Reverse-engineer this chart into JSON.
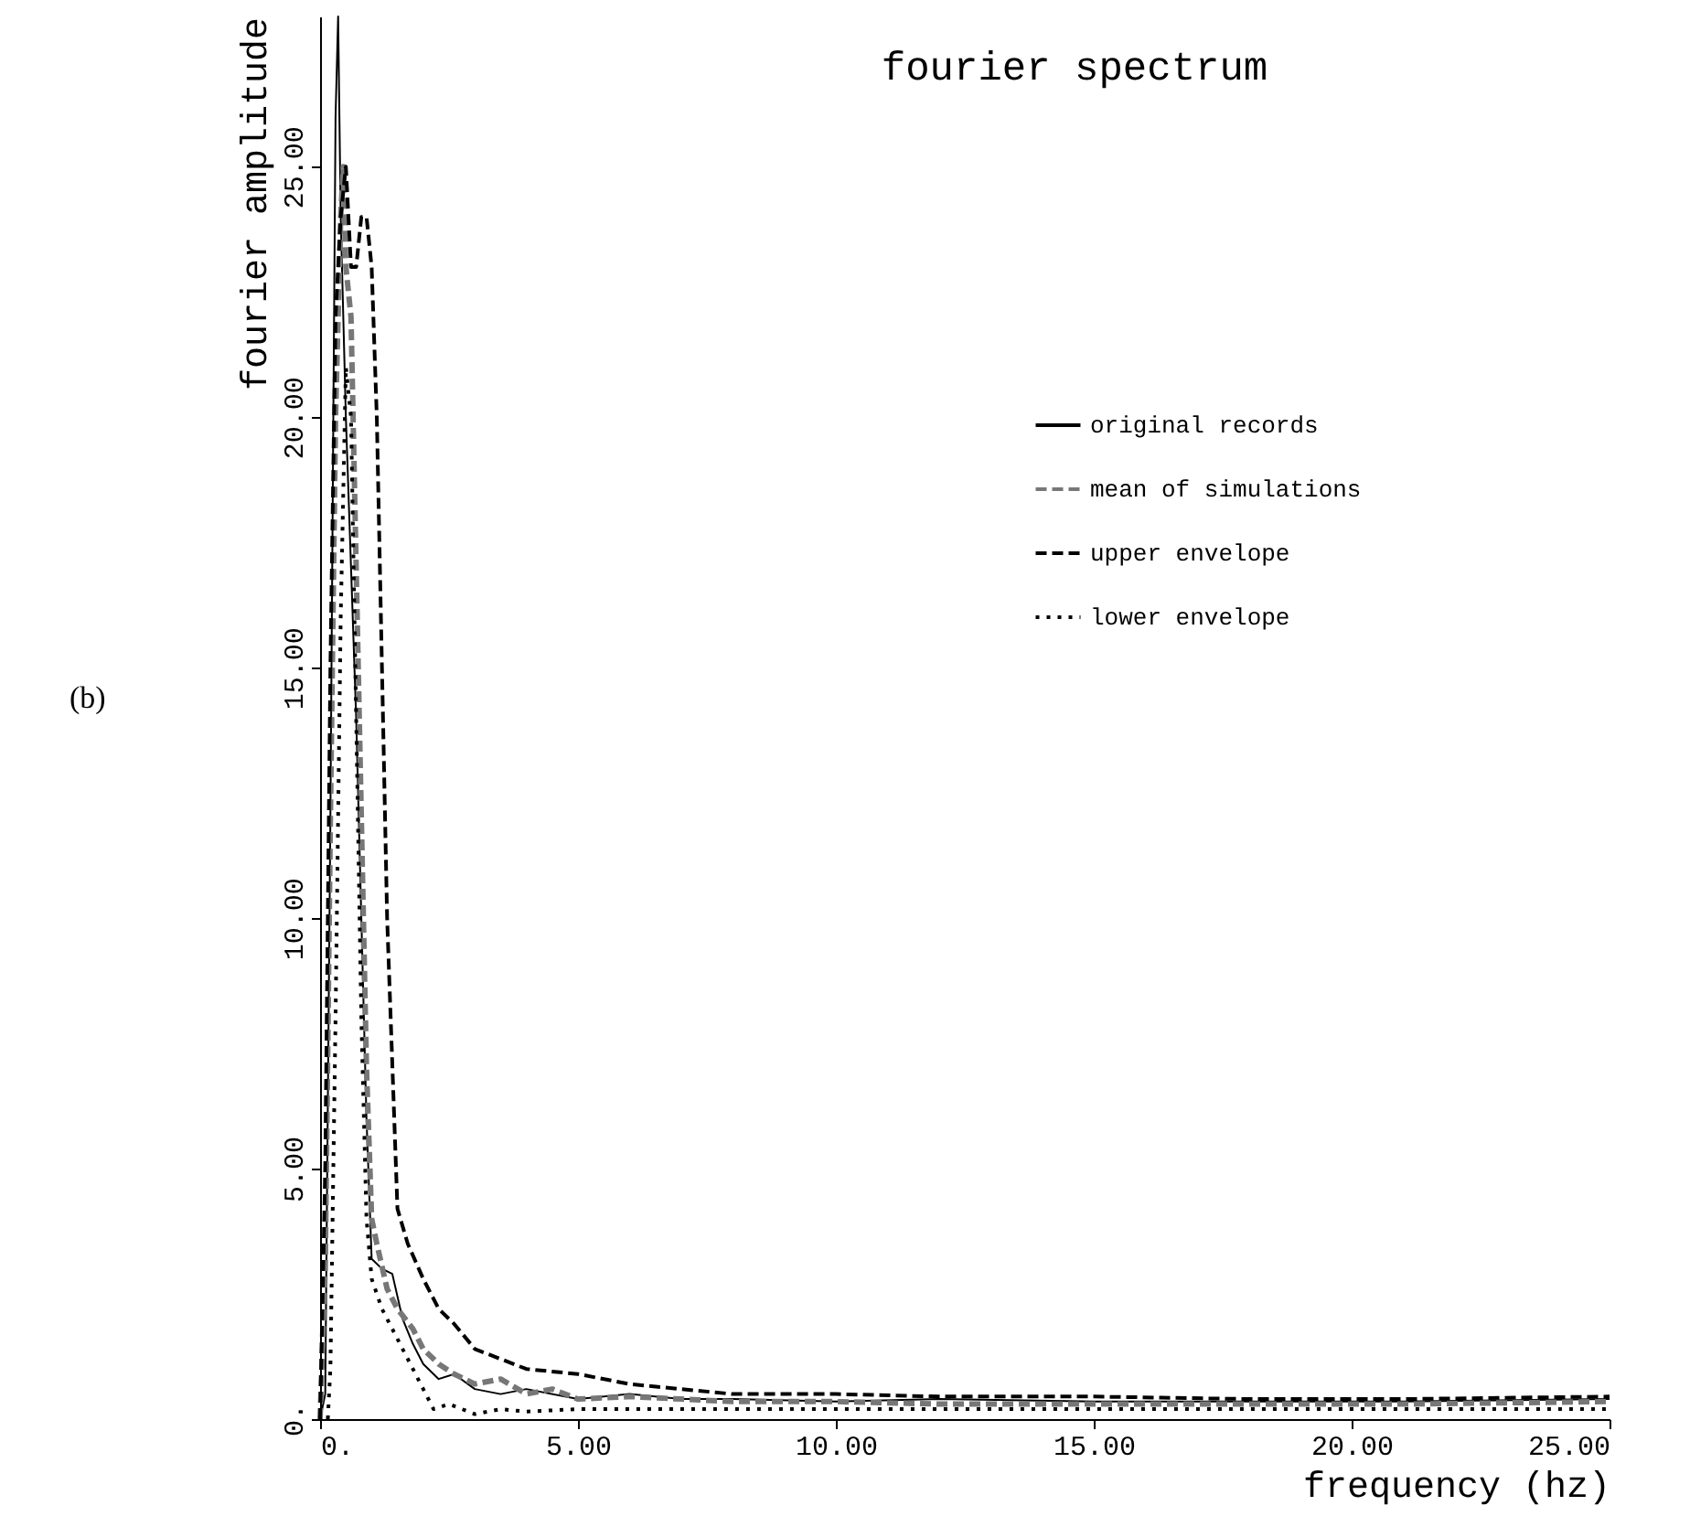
{
  "chart_data": {
    "type": "line",
    "title": "fourier spectrum",
    "xlabel": "frequency  (hz)",
    "ylabel": "fourier amplitude",
    "annotations": [
      "(b)"
    ],
    "xlim": [
      0,
      25
    ],
    "ylim": [
      0,
      28
    ],
    "xticks": [
      {
        "value": 0,
        "label": "0."
      },
      {
        "value": 5,
        "label": "5.00"
      },
      {
        "value": 10,
        "label": "10.00"
      },
      {
        "value": 15,
        "label": "15.00"
      },
      {
        "value": 20,
        "label": "20.00"
      },
      {
        "value": 25,
        "label": "25.00"
      }
    ],
    "yticks": [
      {
        "value": 0,
        "label": "0."
      },
      {
        "value": 5,
        "label": "5.00"
      },
      {
        "value": 10,
        "label": "10.00"
      },
      {
        "value": 15,
        "label": "15.00"
      },
      {
        "value": 20,
        "label": "20.00"
      },
      {
        "value": 25,
        "label": "25.00"
      }
    ],
    "grid": false,
    "legend": "top right",
    "series": [
      {
        "name": "original records",
        "color": "#000000",
        "line_style": "solid",
        "x": [
          0,
          0.1,
          0.2,
          0.3,
          0.35,
          0.4,
          0.5,
          0.6,
          0.7,
          0.8,
          0.9,
          1.0,
          1.2,
          1.4,
          1.6,
          1.8,
          2.0,
          2.3,
          2.6,
          3.0,
          3.5,
          4,
          5,
          6,
          7,
          8,
          10,
          12,
          15,
          18,
          21,
          25
        ],
        "values": [
          0,
          0.5,
          12,
          26,
          28,
          24,
          20,
          17,
          14,
          10,
          6,
          3.2,
          3.0,
          2.9,
          2.0,
          1.5,
          1.1,
          0.8,
          0.9,
          0.6,
          0.5,
          0.6,
          0.4,
          0.5,
          0.4,
          0.4,
          0.35,
          0.4,
          0.35,
          0.35,
          0.35,
          0.4
        ]
      },
      {
        "name": "mean of simulations",
        "color": "#777777",
        "line_style": "dashed",
        "x": [
          0,
          0.1,
          0.2,
          0.3,
          0.4,
          0.45,
          0.5,
          0.6,
          0.7,
          0.8,
          0.9,
          1.0,
          1.1,
          1.3,
          1.5,
          1.8,
          2.0,
          2.3,
          2.6,
          3.0,
          3.5,
          4,
          4.5,
          5,
          6,
          7,
          8,
          10,
          12,
          15,
          18,
          21,
          25
        ],
        "values": [
          0,
          3,
          12,
          20,
          24,
          25,
          23,
          22,
          17,
          12,
          7,
          4,
          3.5,
          2.6,
          2.2,
          1.8,
          1.4,
          1.1,
          0.9,
          0.7,
          0.8,
          0.5,
          0.6,
          0.4,
          0.45,
          0.4,
          0.35,
          0.35,
          0.3,
          0.3,
          0.3,
          0.3,
          0.35
        ]
      },
      {
        "name": "upper envelope",
        "color": "#000000",
        "line_style": "dashed",
        "x": [
          0,
          0.1,
          0.2,
          0.3,
          0.4,
          0.5,
          0.6,
          0.7,
          0.8,
          0.9,
          1.0,
          1.1,
          1.2,
          1.3,
          1.5,
          1.7,
          2.0,
          2.3,
          2.6,
          3.0,
          3.5,
          4,
          5,
          6,
          7,
          8,
          10,
          12,
          15,
          18,
          21,
          25
        ],
        "values": [
          0,
          5,
          15,
          22,
          24,
          25,
          23,
          23,
          24,
          24,
          23,
          20,
          15,
          10,
          4.2,
          3.5,
          2.8,
          2.2,
          1.9,
          1.4,
          1.2,
          1.0,
          0.9,
          0.7,
          0.6,
          0.5,
          0.5,
          0.45,
          0.45,
          0.4,
          0.4,
          0.45
        ]
      },
      {
        "name": "lower envelope",
        "color": "#000000",
        "line_style": "dotted",
        "x": [
          0.15,
          0.2,
          0.3,
          0.4,
          0.5,
          0.6,
          0.7,
          0.8,
          0.9,
          1.0,
          1.2,
          1.4,
          1.7,
          2.0,
          2.2,
          2.5,
          3.0,
          3.5,
          4,
          5,
          6,
          8,
          10,
          15,
          20,
          25
        ],
        "values": [
          0,
          1,
          8,
          16,
          21,
          20,
          14,
          8,
          4,
          2.8,
          2.2,
          1.8,
          1.2,
          0.6,
          0.2,
          0.3,
          0.1,
          0.2,
          0.15,
          0.2,
          0.2,
          0.2,
          0.2,
          0.2,
          0.2,
          0.2
        ]
      }
    ]
  }
}
